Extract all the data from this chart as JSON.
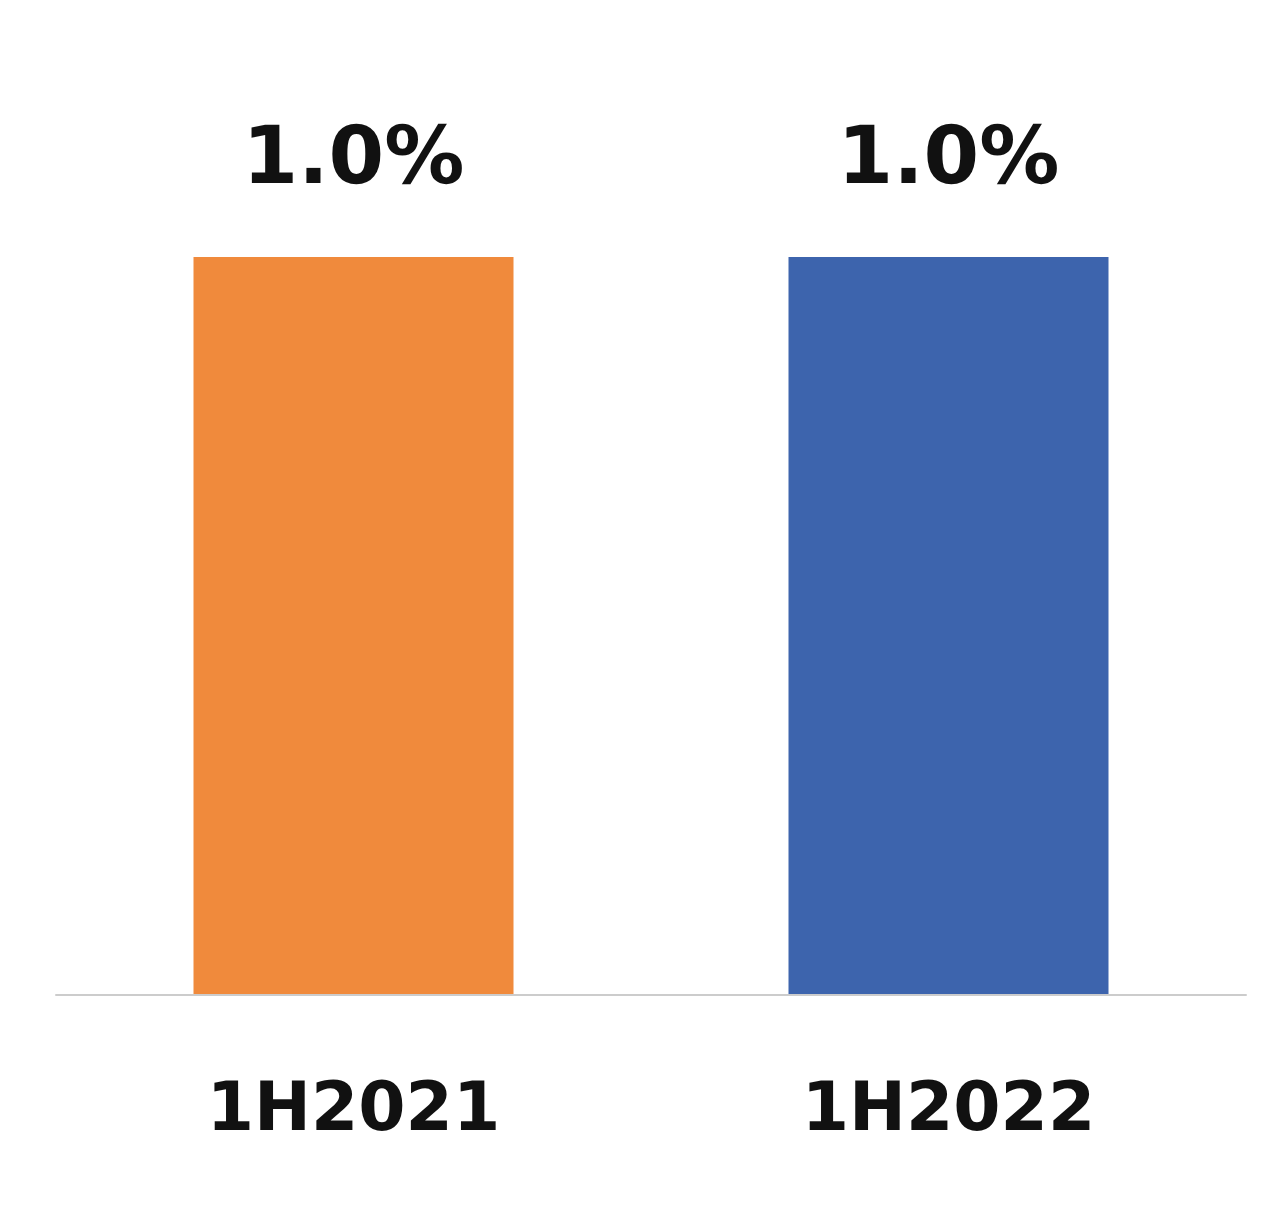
{
  "chart_data": {
    "type": "bar",
    "categories": [
      "1H2021",
      "1H2022"
    ],
    "values": [
      1.0,
      1.0
    ],
    "colors": [
      "#f08a3c",
      "#3d64ad"
    ],
    "value_labels": [
      "1.0%",
      "1.0%"
    ]
  }
}
